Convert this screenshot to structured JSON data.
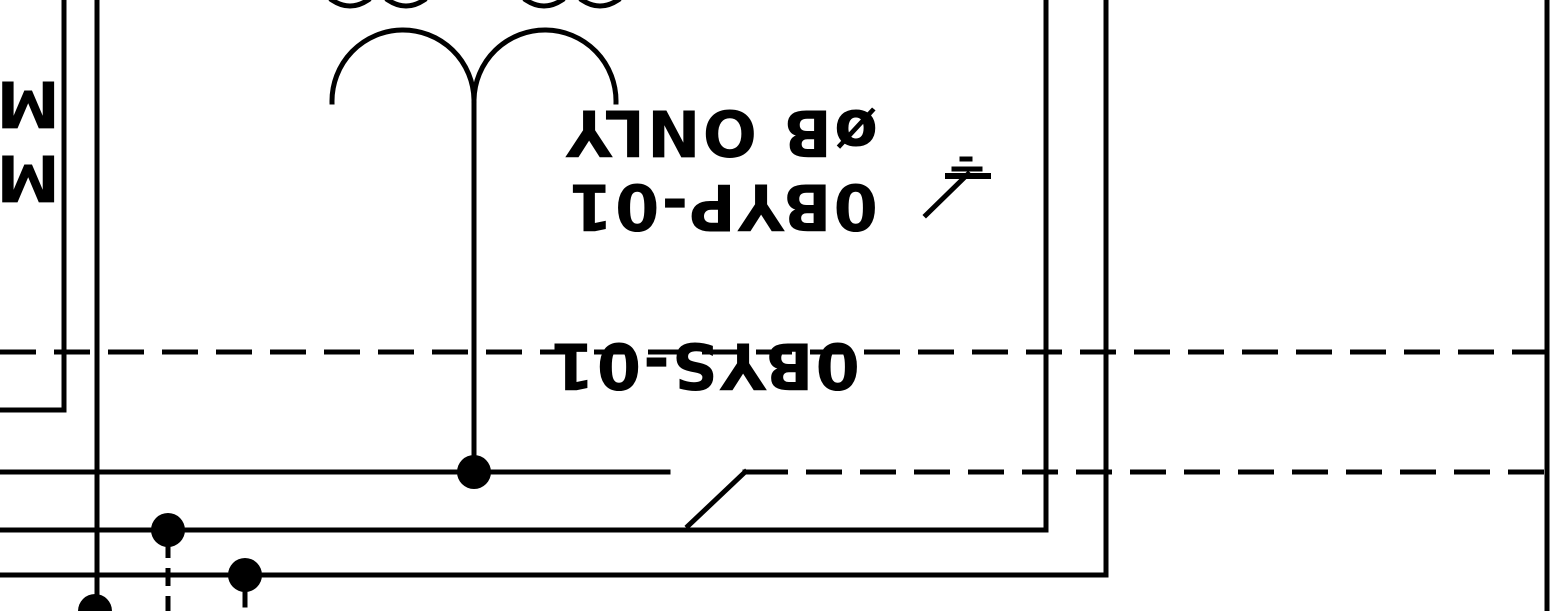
{
  "labels": {
    "phase_note": "øB ONLY",
    "panel_tag": "0BYP-01",
    "switch_tag": "0BYS-01",
    "edge_text_top": "MC",
    "edge_text_bottom": "M"
  },
  "colors": {
    "ink": "#000000",
    "paper": "#ffffff"
  },
  "icons": {
    "ground_symbol": "ground-icon",
    "transformer_symbol": "transformer-coil-icon"
  }
}
